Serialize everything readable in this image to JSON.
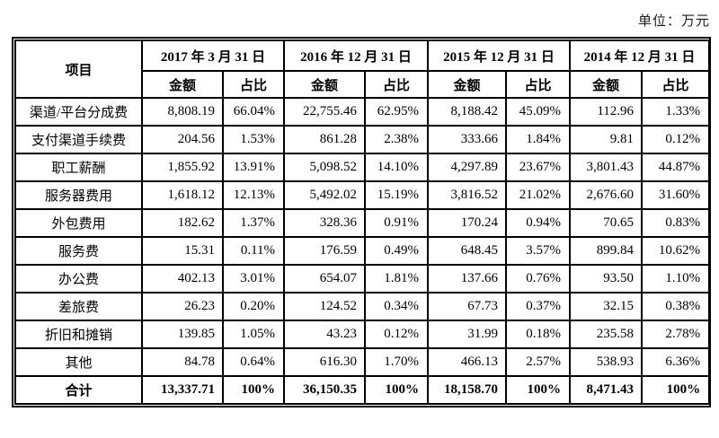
{
  "unit_label": "单位：万元",
  "table": {
    "corner_header": "项目",
    "period_headers": [
      "2017 年 3 月 31 日",
      "2016 年 12 月 31 日",
      "2015 年 12 月 31 日",
      "2014 年 12 月 31 日"
    ],
    "sub_headers": {
      "amount": "金额",
      "ratio": "占比"
    },
    "rows": [
      {
        "label": "渠道/平台分成费",
        "bold": false,
        "cells": [
          "8,808.19",
          "66.04%",
          "22,755.46",
          "62.95%",
          "8,188.42",
          "45.09%",
          "112.96",
          "1.33%"
        ]
      },
      {
        "label": "支付渠道手续费",
        "bold": false,
        "cells": [
          "204.56",
          "1.53%",
          "861.28",
          "2.38%",
          "333.66",
          "1.84%",
          "9.81",
          "0.12%"
        ]
      },
      {
        "label": "职工薪酬",
        "bold": false,
        "cells": [
          "1,855.92",
          "13.91%",
          "5,098.52",
          "14.10%",
          "4,297.89",
          "23.67%",
          "3,801.43",
          "44.87%"
        ]
      },
      {
        "label": "服务器费用",
        "bold": false,
        "cells": [
          "1,618.12",
          "12.13%",
          "5,492.02",
          "15.19%",
          "3,816.52",
          "21.02%",
          "2,676.60",
          "31.60%"
        ]
      },
      {
        "label": "外包费用",
        "bold": false,
        "cells": [
          "182.62",
          "1.37%",
          "328.36",
          "0.91%",
          "170.24",
          "0.94%",
          "70.65",
          "0.83%"
        ]
      },
      {
        "label": "服务费",
        "bold": false,
        "cells": [
          "15.31",
          "0.11%",
          "176.59",
          "0.49%",
          "648.45",
          "3.57%",
          "899.84",
          "10.62%"
        ]
      },
      {
        "label": "办公费",
        "bold": false,
        "cells": [
          "402.13",
          "3.01%",
          "654.07",
          "1.81%",
          "137.66",
          "0.76%",
          "93.50",
          "1.10%"
        ]
      },
      {
        "label": "差旅费",
        "bold": false,
        "cells": [
          "26.23",
          "0.20%",
          "124.52",
          "0.34%",
          "67.73",
          "0.37%",
          "32.15",
          "0.38%"
        ]
      },
      {
        "label": "折旧和摊销",
        "bold": false,
        "cells": [
          "139.85",
          "1.05%",
          "43.23",
          "0.12%",
          "31.99",
          "0.18%",
          "235.58",
          "2.78%"
        ]
      },
      {
        "label": "其他",
        "bold": false,
        "cells": [
          "84.78",
          "0.64%",
          "616.30",
          "1.70%",
          "466.13",
          "2.57%",
          "538.93",
          "6.36%"
        ]
      },
      {
        "label": "合计",
        "bold": true,
        "cells": [
          "13,337.71",
          "100%",
          "36,150.35",
          "100%",
          "18,158.70",
          "100%",
          "8,471.43",
          "100%"
        ]
      }
    ]
  },
  "colors": {
    "border": "#000000",
    "text": "#000000",
    "background": "#ffffff"
  }
}
